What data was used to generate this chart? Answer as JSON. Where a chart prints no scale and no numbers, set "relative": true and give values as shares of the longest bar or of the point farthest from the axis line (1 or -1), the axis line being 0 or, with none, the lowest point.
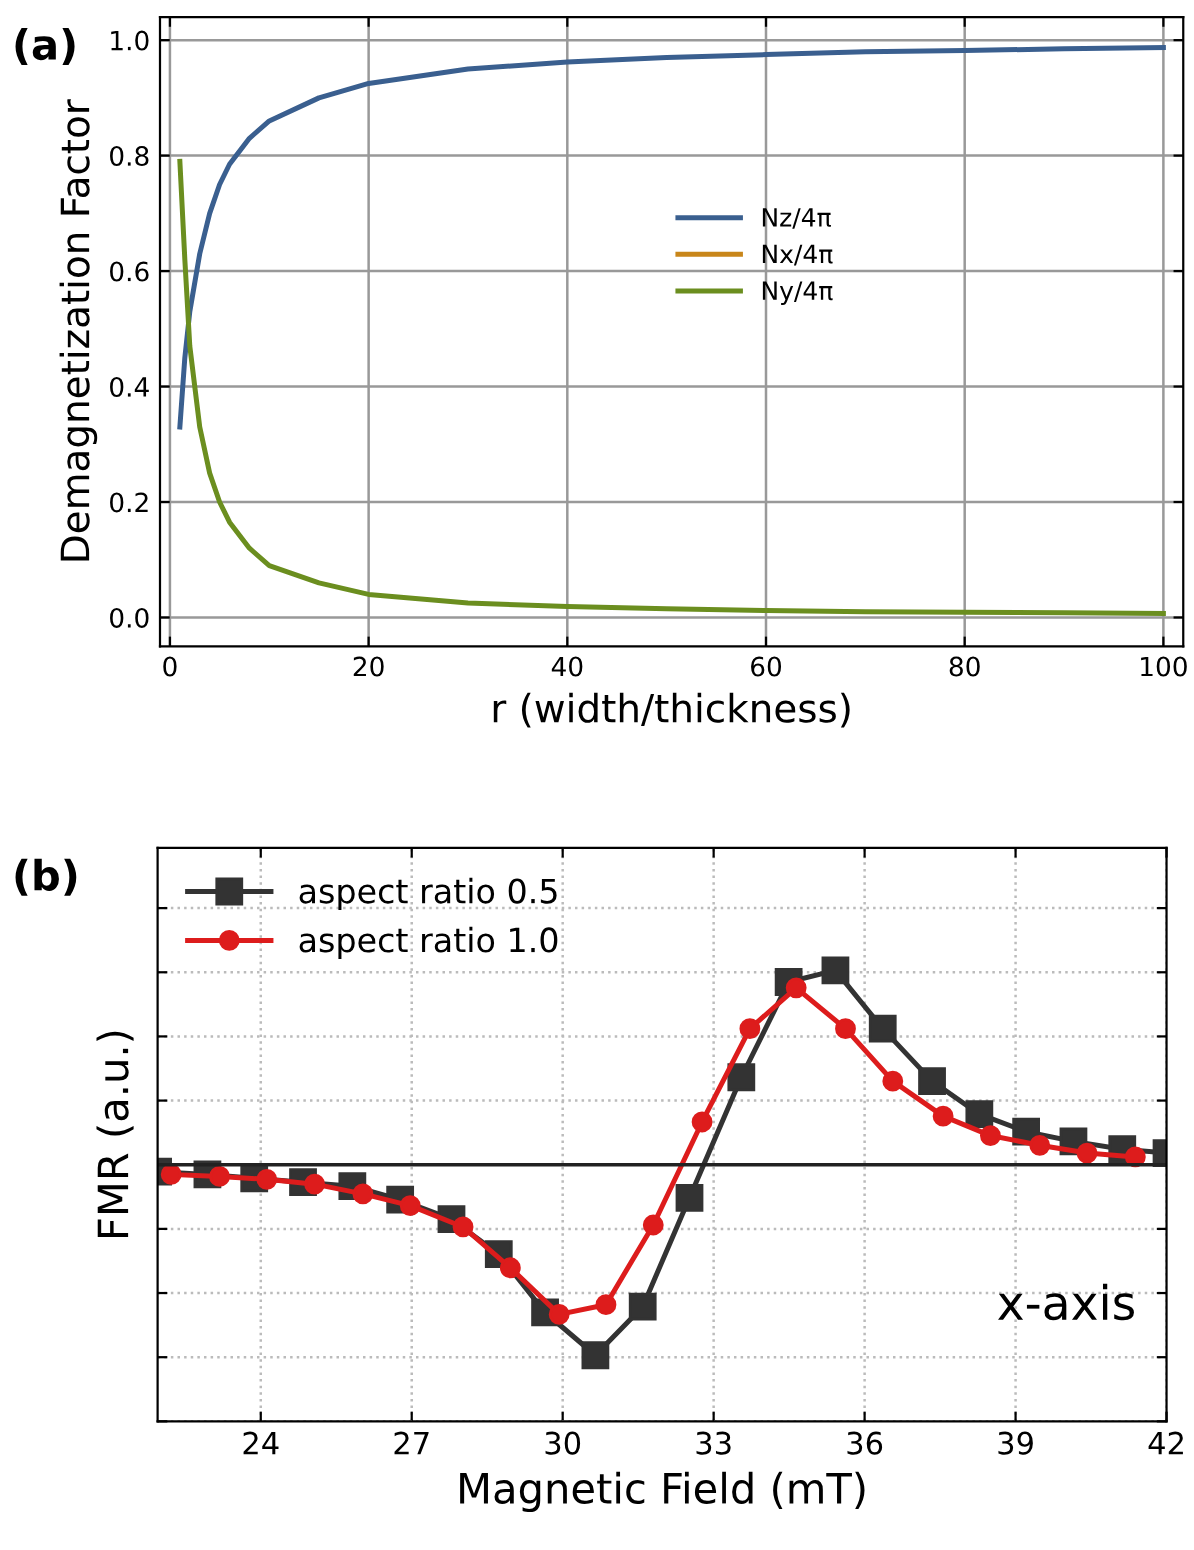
{
  "chart_data": [
    {
      "type": "line",
      "xlabel": "r (width/thickness)",
      "ylabel": "Demagnetization Factor",
      "annotations": [
        "(a)"
      ],
      "x": [
        1,
        1.5,
        2,
        3,
        4,
        5,
        6,
        8,
        10,
        15,
        20,
        30,
        40,
        50,
        60,
        70,
        80,
        90,
        100
      ],
      "series": [
        {
          "name": "Nz/4π",
          "color": "#3a5f8f",
          "values": [
            0.33,
            0.45,
            0.53,
            0.63,
            0.7,
            0.75,
            0.785,
            0.83,
            0.86,
            0.9,
            0.925,
            0.95,
            0.962,
            0.97,
            0.975,
            0.98,
            0.982,
            0.985,
            0.987
          ]
        },
        {
          "name": "Nx/4π",
          "color": "#c8861a",
          "values": [
            null,
            null,
            null,
            null,
            null,
            null,
            null,
            null,
            null,
            null,
            null,
            null,
            null,
            null,
            null,
            null,
            null,
            null,
            null
          ]
        },
        {
          "name": "Ny/4π",
          "color": "#6b8e1f",
          "values": [
            0.79,
            0.62,
            0.47,
            0.33,
            0.25,
            0.2,
            0.165,
            0.12,
            0.09,
            0.06,
            0.04,
            0.025,
            0.019,
            0.015,
            0.012,
            0.01,
            0.009,
            0.008,
            0.007
          ]
        }
      ],
      "xlim": [
        -1,
        102
      ],
      "ylim": [
        -0.05,
        1.04
      ],
      "xticks": [
        0,
        20,
        40,
        60,
        80,
        100
      ],
      "yticks": [
        {
          "value": 0,
          "label": "0.0"
        },
        0.2,
        0.4,
        0.6,
        0.8,
        {
          "value": 1,
          "label": "1.0"
        }
      ],
      "grid": true,
      "legend": "right",
      "line_style": "solid",
      "marker": "none"
    },
    {
      "type": "line",
      "xlabel": "Magnetic Field (mT)",
      "ylabel": "FMR (a.u.)",
      "annotations": [
        "(b)",
        "x-axis"
      ],
      "relative": true,
      "series": [
        {
          "name": "aspect ratio 0.5",
          "color": "#333333",
          "marker": "square",
          "x": [
            21.96,
            22.94,
            23.87,
            24.84,
            25.82,
            26.77,
            27.79,
            28.73,
            29.65,
            30.65,
            31.59,
            32.52,
            33.55,
            34.49,
            35.42,
            36.36,
            37.34,
            38.28,
            39.21,
            40.15,
            41.12,
            42.0
          ],
          "values": [
            -0.036,
            -0.05,
            -0.07,
            -0.09,
            -0.11,
            -0.18,
            -0.28,
            -0.46,
            -0.76,
            -0.98,
            -0.73,
            -0.17,
            0.45,
            0.94,
            1.0,
            0.7,
            0.43,
            0.26,
            0.17,
            0.12,
            0.08,
            0.06
          ]
        },
        {
          "name": "aspect ratio 1.0",
          "color": "#dd1c1c",
          "marker": "circle",
          "x": [
            22.22,
            23.18,
            24.12,
            25.07,
            26.03,
            26.97,
            28.02,
            28.96,
            29.93,
            30.86,
            31.8,
            32.77,
            33.72,
            34.64,
            35.62,
            36.56,
            37.56,
            38.5,
            39.48,
            40.42,
            41.38
          ],
          "values": [
            -0.05,
            -0.06,
            -0.075,
            -0.1,
            -0.15,
            -0.21,
            -0.32,
            -0.53,
            -0.77,
            -0.72,
            -0.31,
            0.22,
            0.7,
            0.91,
            0.7,
            0.43,
            0.25,
            0.15,
            0.1,
            0.06,
            0.04
          ]
        }
      ],
      "xlim": [
        21.95,
        42
      ],
      "xticks": [
        24,
        27,
        30,
        33,
        36,
        39,
        42
      ],
      "grid": true,
      "legend": "top left",
      "line_style": "solid",
      "tick_labels": "x"
    }
  ]
}
